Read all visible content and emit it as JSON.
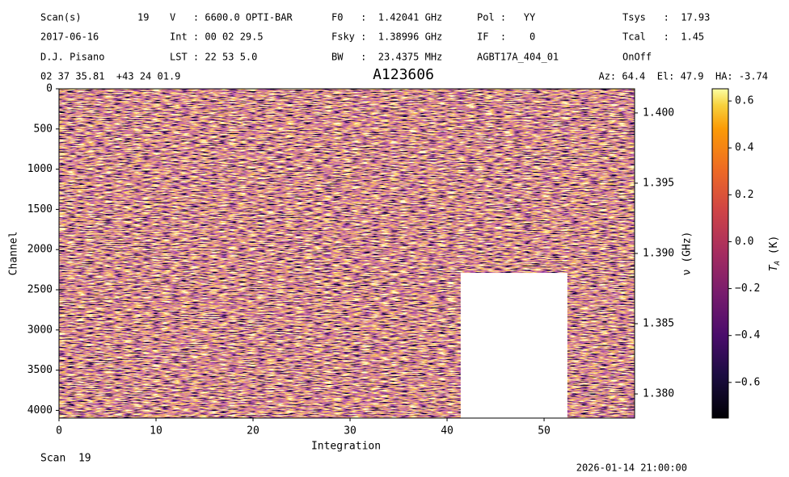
{
  "chart_data": {
    "type": "waterfall",
    "title": "A123606",
    "header": [
      [
        "Scan(s)",
        "19",
        "V   : 6600.0 OPTI-BAR",
        "F0   :  1.42041 GHz",
        "Pol :   YY",
        "Tsys   :  17.93"
      ],
      [
        "2017-06-16",
        "Int : 00 02 29.5",
        "Fsky :  1.38996 GHz",
        "IF  :    0",
        "Tcal   :  1.45"
      ],
      [
        "D.J. Pisano",
        "LST : 22 53 5.0",
        "BW   :  23.4375 MHz",
        "AGBT17A_404_01",
        "OnOff"
      ]
    ],
    "coordinates": "02 37 35.81  +43 24 01.9",
    "pointing": "Az: 64.4  El: 47.9  HA: -3.74",
    "footer_left": "Scan  19",
    "footer_right": "2026-01-14 21:00:00",
    "xlabel": "Integration",
    "ylabel": "Channel",
    "y2label": "ν (GHz)",
    "colorbar_label": {
      "symbol": "T",
      "subscript": "A",
      "unit": "(K)"
    },
    "xlim": [
      0,
      59.33
    ],
    "xticks": [
      0,
      10,
      20,
      30,
      40,
      50
    ],
    "ylim": [
      4096,
      0
    ],
    "yticks": [
      0,
      500,
      1000,
      1500,
      2000,
      2500,
      3000,
      3500,
      4000
    ],
    "y2lim": [
      1.37828,
      1.40172
    ],
    "y2ticks": [
      {
        "value": 1.38,
        "label": "1.380"
      },
      1.385,
      {
        "value": 1.39,
        "label": "1.390"
      },
      1.395,
      {
        "value": 1.4,
        "label": "1.400"
      }
    ],
    "clim": [
      -0.752,
      0.652
    ],
    "cticks": [
      {
        "value": -0.6,
        "label": "−0.6"
      },
      {
        "value": -0.4,
        "label": "−0.4"
      },
      {
        "value": -0.2,
        "label": "−0.2"
      },
      {
        "value": 0,
        "label": "0.0"
      },
      0.2,
      0.4,
      0.6
    ],
    "colormap": "inferno",
    "masked_region": {
      "x": [
        41.4,
        52.4
      ],
      "y": [
        2290,
        4096
      ]
    }
  }
}
